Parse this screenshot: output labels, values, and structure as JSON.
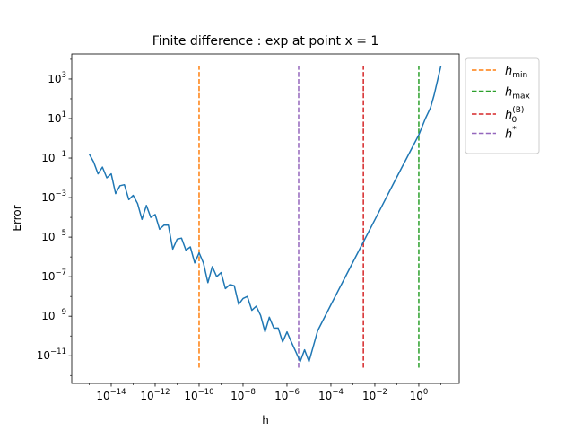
{
  "chart_data": {
    "type": "line",
    "title": "Finite difference : exp at point x = 1",
    "xlabel": "h",
    "ylabel": "Error",
    "xscale": "log",
    "yscale": "log",
    "xlim": [
      1.6e-16,
      69
    ],
    "ylim": [
      4e-13,
      18600
    ],
    "x_tick_exponents": [
      -14,
      -12,
      -10,
      -8,
      -6,
      -4,
      -2,
      0
    ],
    "y_tick_exponents": [
      3,
      1,
      -1,
      -3,
      -5,
      -7,
      -9,
      -11
    ],
    "grid": false,
    "legend_position": "outside-top-right",
    "series": [
      {
        "color": "#1f77b4",
        "x": [
          1e-15,
          1.58e-15,
          2.51e-15,
          3.98e-15,
          6.31e-15,
          1e-14,
          1.58e-14,
          2.51e-14,
          3.98e-14,
          6.31e-14,
          1e-13,
          1.58e-13,
          2.51e-13,
          3.98e-13,
          6.31e-13,
          1e-12,
          1.58e-12,
          2.51e-12,
          3.98e-12,
          6.31e-12,
          1e-11,
          1.58e-11,
          2.51e-11,
          3.98e-11,
          6.31e-11,
          1e-10,
          1.58e-10,
          2.51e-10,
          3.98e-10,
          6.31e-10,
          1e-09,
          1.58e-09,
          2.51e-09,
          3.98e-09,
          6.31e-09,
          1e-08,
          1.58e-08,
          2.51e-08,
          3.98e-08,
          6.31e-08,
          1e-07,
          1.58e-07,
          2.51e-07,
          3.98e-07,
          6.31e-07,
          1e-06,
          1.58e-06,
          2.51e-06,
          3.98e-06,
          6.31e-06,
          1e-05,
          2.51e-05,
          0.0001,
          0.001,
          0.01,
          0.1,
          1,
          2,
          3.4,
          5,
          7,
          10
        ],
        "y": [
          0.16,
          0.063,
          0.016,
          0.035,
          0.01,
          0.016,
          0.0016,
          0.004,
          0.0045,
          0.00079,
          0.0013,
          0.0005,
          7.9e-05,
          0.0004,
          0.0001,
          0.00014,
          2.5e-05,
          4e-05,
          4e-05,
          2.5e-06,
          7.9e-06,
          8.9e-06,
          2.2e-06,
          3.2e-06,
          5e-07,
          1.6e-06,
          5e-07,
          5e-08,
          3.2e-07,
          1e-07,
          1.6e-07,
          2.5e-08,
          4e-08,
          3.5e-08,
          4e-09,
          7.9e-09,
          1e-08,
          2e-09,
          3.2e-09,
          1.1e-09,
          1.6e-10,
          8.9e-10,
          2.5e-10,
          2.5e-10,
          5e-11,
          1.6e-10,
          5e-11,
          1.6e-11,
          5e-12,
          2e-11,
          5e-12,
          1.9e-10,
          3.8e-09,
          5.4e-07,
          7.6e-05,
          0.011,
          1.5,
          10,
          35,
          160,
          800,
          4400
        ]
      }
    ],
    "vlines": [
      {
        "label_base": "h",
        "label_sub": "min",
        "label_sup": "",
        "x": 1e-10,
        "color": "#ff7f0e"
      },
      {
        "label_base": "h",
        "label_sub": "max",
        "label_sup": "",
        "x": 1,
        "color": "#2ca02c"
      },
      {
        "label_base": "h",
        "label_sub": "0",
        "label_sup": "(B)",
        "x": 0.003,
        "color": "#d62728"
      },
      {
        "label_base": "h",
        "label_sub": "",
        "label_sup": "*",
        "x": 3.4e-06,
        "color": "#9467bd"
      }
    ],
    "vline_yrange": [
      2.5e-12,
      4400
    ]
  }
}
